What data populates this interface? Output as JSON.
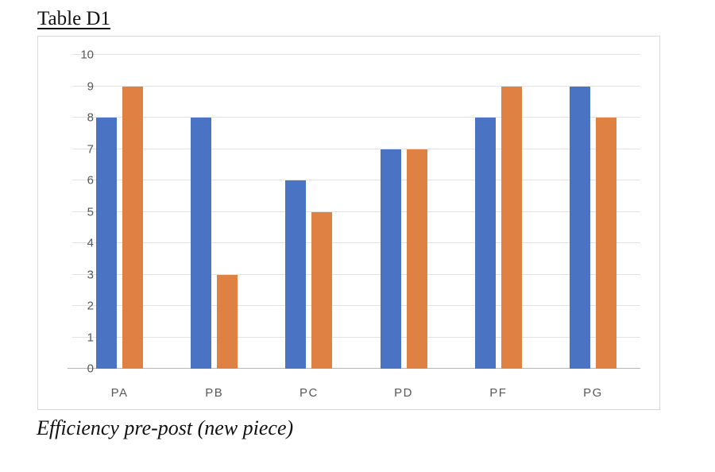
{
  "title": "Table D1",
  "caption": "Efficiency pre-post (new piece)",
  "colors": {
    "series_pre": "#4A73C4",
    "series_post": "#DF8142",
    "gridline": "#e3e3e3",
    "axis_line": "#b7b7b7",
    "axis_text": "#595959",
    "frame_border": "#d9d9d9",
    "background": "#ffffff"
  },
  "chart_data": {
    "type": "bar",
    "title": "Table D1",
    "categories": [
      "PA",
      "PB",
      "PC",
      "PD",
      "PF",
      "PG"
    ],
    "series": [
      {
        "name": "pre",
        "color": "#4A73C4",
        "values": [
          8,
          8,
          6,
          7,
          8,
          9
        ]
      },
      {
        "name": "post",
        "color": "#DF8142",
        "values": [
          9,
          3,
          5,
          7,
          9,
          8
        ]
      }
    ],
    "xlabel": "",
    "ylabel": "",
    "ylim": [
      0,
      10
    ],
    "yticks": [
      0,
      1,
      2,
      3,
      4,
      5,
      6,
      7,
      8,
      9,
      10
    ],
    "grid": true,
    "legend_position": "none"
  }
}
